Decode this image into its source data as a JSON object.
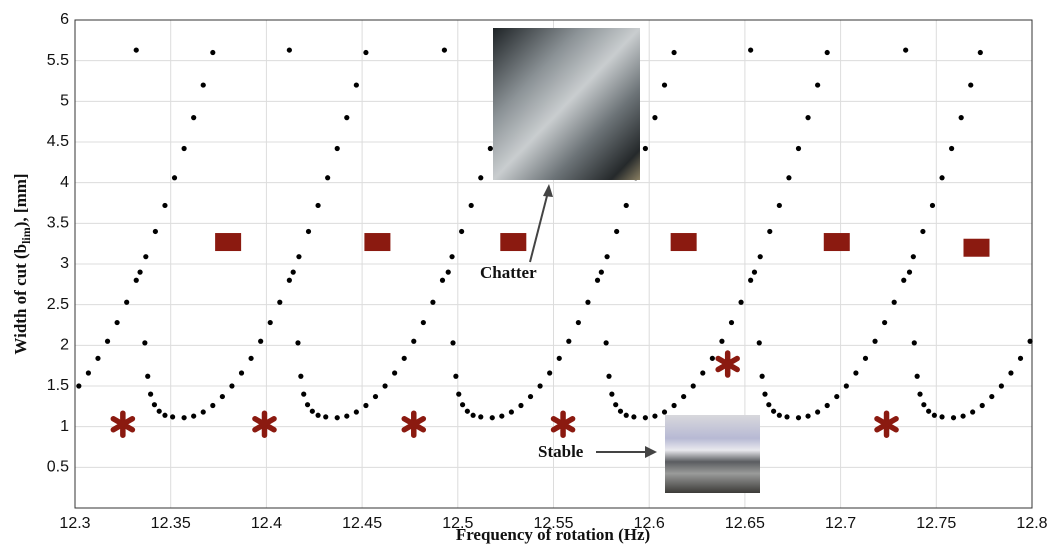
{
  "chart_data": {
    "type": "scatter",
    "x_label": "Frequency of rotation (Hz)",
    "y_label_parts": [
      "Width of cut (b",
      "lim",
      "), [mm]"
    ],
    "xlim": [
      12.3,
      12.8
    ],
    "xticks": [
      12.3,
      12.35,
      12.4,
      12.45,
      12.5,
      12.55,
      12.6,
      12.65,
      12.7,
      12.75,
      12.8
    ],
    "ylim": [
      0,
      6
    ],
    "yticks": [
      0.5,
      1,
      1.5,
      2,
      2.5,
      3,
      3.5,
      4,
      4.5,
      5,
      5.5,
      6
    ],
    "grid": true,
    "annotations": [
      "Chatter",
      "Stable"
    ],
    "series": [
      {
        "marker": "dot",
        "color": "#000000",
        "x": [
          12.302,
          12.307,
          12.312,
          12.317,
          12.322,
          12.327,
          12.332,
          12.337,
          12.342,
          12.347,
          12.352,
          12.357,
          12.362,
          12.367,
          12.372,
          12.332,
          12.334,
          12.3365,
          12.338,
          12.3395,
          12.3415,
          12.344,
          12.347,
          12.351,
          12.357,
          12.362,
          12.367,
          12.372,
          12.377,
          12.382,
          12.387,
          12.392,
          12.397,
          12.402,
          12.407,
          12.412,
          12.417,
          12.422,
          12.427,
          12.432,
          12.437,
          12.442,
          12.447,
          12.452,
          12.412,
          12.414,
          12.4165,
          12.418,
          12.4195,
          12.4215,
          12.424,
          12.427,
          12.431,
          12.437,
          12.442,
          12.447,
          12.452,
          12.457,
          12.462,
          12.467,
          12.472,
          12.477,
          12.482,
          12.487,
          12.492,
          12.497,
          12.502,
          12.507,
          12.512,
          12.517,
          12.522,
          12.527,
          12.532,
          12.493,
          12.495,
          12.4975,
          12.499,
          12.5005,
          12.5025,
          12.505,
          12.508,
          12.512,
          12.518,
          12.523,
          12.528,
          12.533,
          12.538,
          12.543,
          12.548,
          12.553,
          12.558,
          12.563,
          12.568,
          12.573,
          12.578,
          12.583,
          12.588,
          12.593,
          12.598,
          12.603,
          12.608,
          12.613,
          12.573,
          12.575,
          12.5775,
          12.579,
          12.5805,
          12.5825,
          12.585,
          12.588,
          12.592,
          12.598,
          12.603,
          12.608,
          12.613,
          12.618,
          12.623,
          12.628,
          12.633,
          12.638,
          12.643,
          12.648,
          12.653,
          12.658,
          12.663,
          12.668,
          12.673,
          12.678,
          12.683,
          12.688,
          12.693,
          12.653,
          12.655,
          12.6575,
          12.659,
          12.6605,
          12.6625,
          12.665,
          12.668,
          12.672,
          12.678,
          12.683,
          12.688,
          12.693,
          12.698,
          12.703,
          12.708,
          12.713,
          12.718,
          12.723,
          12.728,
          12.733,
          12.738,
          12.743,
          12.748,
          12.753,
          12.758,
          12.763,
          12.768,
          12.773,
          12.734,
          12.736,
          12.7385,
          12.74,
          12.7415,
          12.7435,
          12.746,
          12.749,
          12.753,
          12.759,
          12.764,
          12.769,
          12.774,
          12.779,
          12.784,
          12.789,
          12.794,
          12.799
        ],
        "values": [
          1.5,
          1.66,
          1.84,
          2.05,
          2.28,
          2.53,
          2.8,
          3.09,
          3.4,
          3.72,
          4.06,
          4.42,
          4.8,
          5.2,
          5.6,
          5.63,
          2.9,
          2.03,
          1.62,
          1.4,
          1.27,
          1.19,
          1.14,
          1.12,
          1.11,
          1.13,
          1.18,
          1.26,
          1.37,
          1.5,
          1.66,
          1.84,
          2.05,
          2.28,
          2.53,
          2.8,
          3.09,
          3.4,
          3.72,
          4.06,
          4.42,
          4.8,
          5.2,
          5.6,
          5.63,
          2.9,
          2.03,
          1.62,
          1.4,
          1.27,
          1.19,
          1.14,
          1.12,
          1.11,
          1.13,
          1.18,
          1.26,
          1.37,
          1.5,
          1.66,
          1.84,
          2.05,
          2.28,
          2.53,
          2.8,
          3.09,
          3.4,
          3.72,
          4.06,
          4.42,
          4.8,
          5.2,
          5.6,
          5.63,
          2.9,
          2.03,
          1.62,
          1.4,
          1.27,
          1.19,
          1.14,
          1.12,
          1.11,
          1.13,
          1.18,
          1.26,
          1.37,
          1.5,
          1.66,
          1.84,
          2.05,
          2.28,
          2.53,
          2.8,
          3.09,
          3.4,
          3.72,
          4.06,
          4.42,
          4.8,
          5.2,
          5.6,
          5.63,
          2.9,
          2.03,
          1.62,
          1.4,
          1.27,
          1.19,
          1.14,
          1.12,
          1.11,
          1.13,
          1.18,
          1.26,
          1.37,
          1.5,
          1.66,
          1.84,
          2.05,
          2.28,
          2.53,
          2.8,
          3.09,
          3.4,
          3.72,
          4.06,
          4.42,
          4.8,
          5.2,
          5.6,
          5.63,
          2.9,
          2.03,
          1.62,
          1.4,
          1.27,
          1.19,
          1.14,
          1.12,
          1.11,
          1.13,
          1.18,
          1.26,
          1.37,
          1.5,
          1.66,
          1.84,
          2.05,
          2.28,
          2.53,
          2.8,
          3.09,
          3.4,
          3.72,
          4.06,
          4.42,
          4.8,
          5.2,
          5.6,
          5.63,
          2.9,
          2.03,
          1.62,
          1.4,
          1.27,
          1.19,
          1.14,
          1.12,
          1.11,
          1.13,
          1.18,
          1.26,
          1.37,
          1.5,
          1.66,
          1.84,
          2.05
        ]
      },
      {
        "marker": "square",
        "color": "#8b1a10",
        "x": [
          12.38,
          12.458,
          12.529,
          12.618,
          12.698,
          12.771
        ],
        "values": [
          3.27,
          3.27,
          3.27,
          3.27,
          3.27,
          3.2
        ]
      },
      {
        "marker": "asterisk",
        "color": "#8b1a10",
        "x": [
          12.325,
          12.399,
          12.477,
          12.555,
          12.641,
          12.724
        ],
        "values": [
          1.03,
          1.03,
          1.03,
          1.03,
          1.77,
          1.03
        ]
      }
    ]
  }
}
